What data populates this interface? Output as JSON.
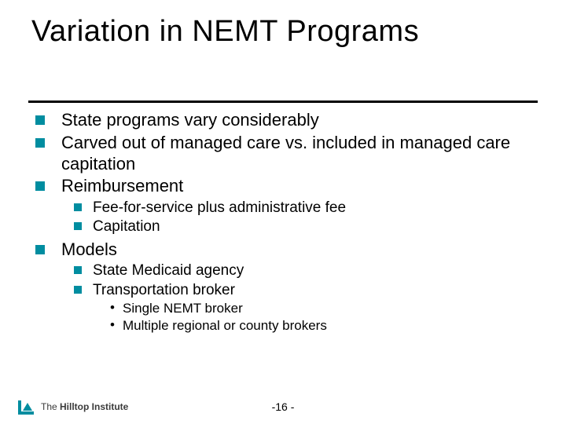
{
  "title": "Variation in NEMT Programs",
  "accent_color": "#008da0",
  "bullets": {
    "b1": "State programs vary considerably",
    "b2": "Carved out of managed care vs. included in managed care capitation",
    "b3": "Reimbursement",
    "b3a": "Fee-for-service plus administrative fee",
    "b3b": "Capitation",
    "b4": "Models",
    "b4a": "State Medicaid agency",
    "b4b": "Transportation broker",
    "b4b1": "Single NEMT broker",
    "b4b2": "Multiple regional or county brokers"
  },
  "footer": {
    "the": "The ",
    "name": "Hilltop Institute"
  },
  "page_number": "-16 -"
}
